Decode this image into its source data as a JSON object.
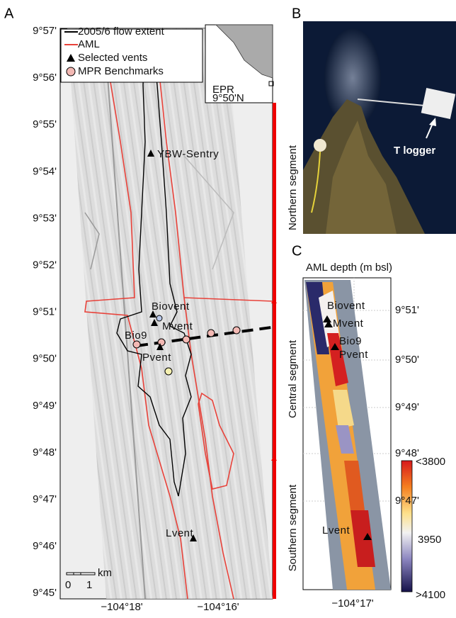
{
  "panels": {
    "a": {
      "label": "A",
      "y_labels": [
        "9°57'",
        "9°56'",
        "9°55'",
        "9°54'",
        "9°53'",
        "9°52'",
        "9°51'",
        "9°50'",
        "9°49'",
        "9°48'",
        "9°47'",
        "9°46'",
        "9°45'"
      ],
      "x_labels": [
        "−104°18'",
        "−104°16'"
      ],
      "legend": [
        "2005/6 flow extent",
        "AML",
        "Selected vents",
        "MPR Benchmarks"
      ],
      "inset": {
        "region": "EPR",
        "latitude": "9°50'N"
      },
      "vents": [
        "YBW-Sentry",
        "Biovent",
        "Mvent",
        "Bio9",
        "Pvent",
        "Lvent"
      ],
      "scale_bar": {
        "unit": "km",
        "start": "0",
        "end": "1"
      },
      "segments": [
        "Northern segment",
        "Central segment",
        "Southern segment"
      ]
    },
    "b": {
      "label": "B",
      "annotation": "T logger"
    },
    "c": {
      "label": "C",
      "title": "AML depth (m bsl)",
      "y_labels": [
        "9°51'",
        "9°50'",
        "9°49'",
        "9°48'",
        "9°47'"
      ],
      "x_label": "−104°17'",
      "vents": [
        "Biovent",
        "Mvent",
        "Bio9",
        "Pvent",
        "Lvent"
      ],
      "colorbar": [
        "<3800",
        "3950",
        ">4100"
      ]
    }
  }
}
